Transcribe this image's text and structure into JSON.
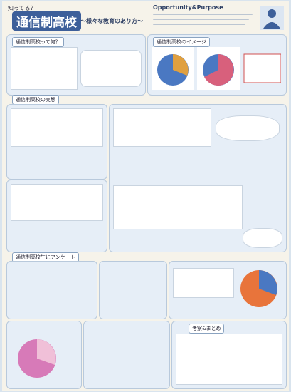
{
  "header": {
    "kicker": "知ってる？",
    "title": "通信制高校",
    "subtitle": "〜様々な教育のあり方〜",
    "tagline": "Opportunity&Purpose"
  },
  "sections": {
    "what": "通信制高校って何？",
    "image": "通信制高校のイメージ",
    "reality": "通信制高校の実態",
    "survey": "通信制高校生にアンケート",
    "summary": "考察&まとめ"
  }
}
